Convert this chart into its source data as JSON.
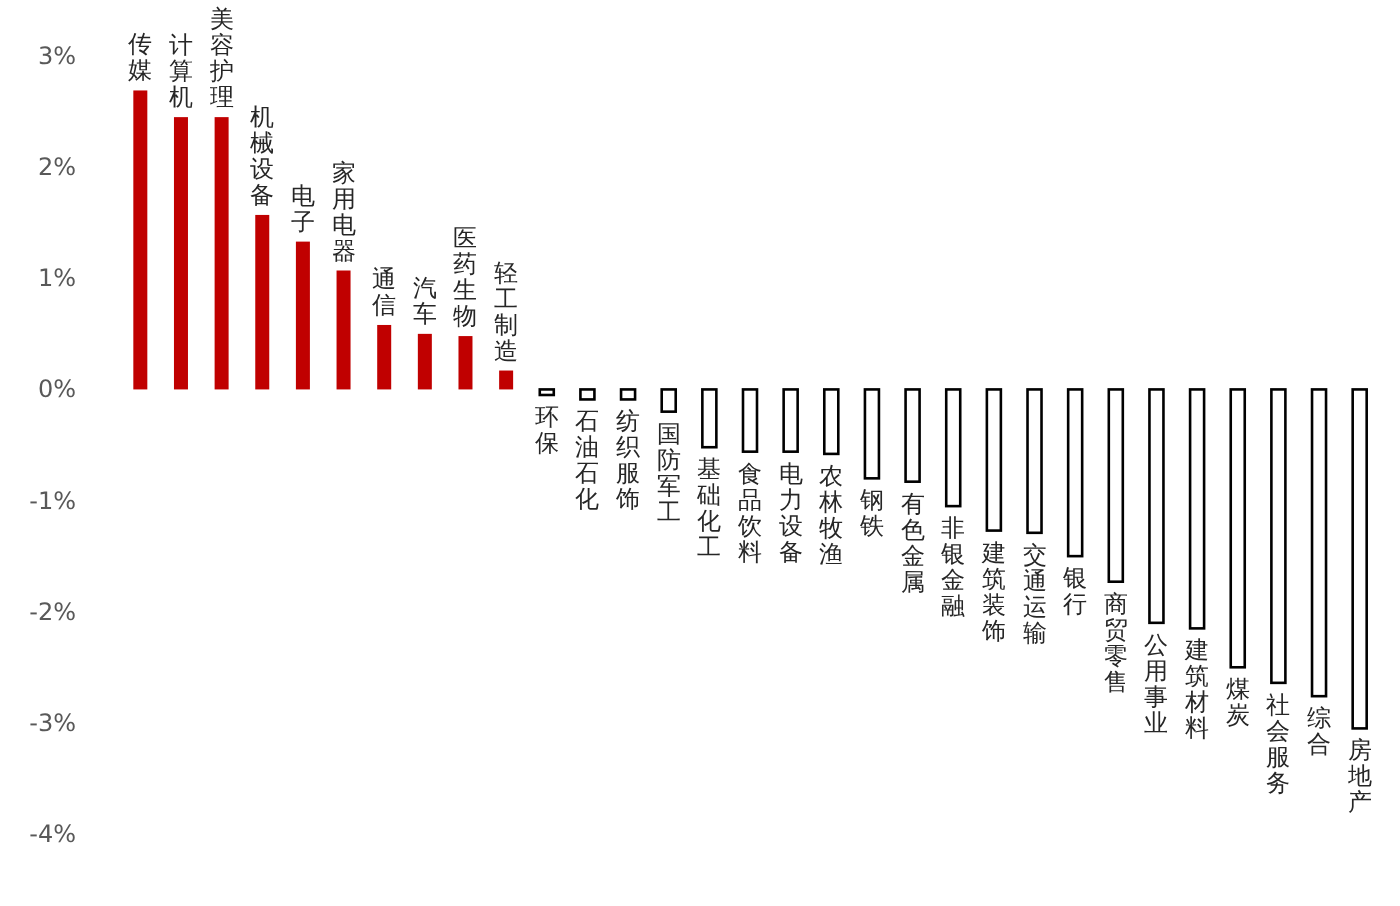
{
  "chart_data": {
    "type": "bar",
    "categories": [
      "传媒",
      "计算机",
      "美容护理",
      "机械设备",
      "电子",
      "家用电器",
      "通信",
      "汽车",
      "医药生物",
      "轻工制造",
      "环保",
      "石油石化",
      "纺织服饰",
      "国防军工",
      "基础化工",
      "食品饮料",
      "电力设备",
      "农林牧渔",
      "钢铁",
      "有色金属",
      "非银金融",
      "建筑装饰",
      "交通运输",
      "银行",
      "商贸零售",
      "公用事业",
      "建筑材料",
      "煤炭",
      "社会服务",
      "综合",
      "房地产"
    ],
    "values": [
      2.69,
      2.45,
      2.45,
      1.57,
      1.33,
      1.07,
      0.58,
      0.5,
      0.48,
      0.17,
      -0.05,
      -0.09,
      -0.09,
      -0.2,
      -0.52,
      -0.56,
      -0.56,
      -0.58,
      -0.8,
      -0.83,
      -1.05,
      -1.27,
      -1.29,
      -1.5,
      -1.73,
      -2.1,
      -2.15,
      -2.5,
      -2.64,
      -2.76,
      -3.05
    ],
    "colors": [
      "#c00000",
      "#c00000",
      "#c00000",
      "#c00000",
      "#c00000",
      "#c00000",
      "#c00000",
      "#c00000",
      "#c00000",
      "#c00000",
      "#ffffff",
      "#ffffff",
      "#ffffff",
      "#ffffff",
      "#ffffff",
      "#ffffff",
      "#ffffff",
      "#ffffff",
      "#ffffff",
      "#ffffff",
      "#ffffff",
      "#ffffff",
      "#ffffff",
      "#ffffff",
      "#ffffff",
      "#ffffff",
      "#ffffff",
      "#ffffff",
      "#ffffff",
      "#ffffff",
      "#ffffff"
    ],
    "ylim": [
      -4,
      3
    ],
    "yticks": [
      {
        "value": 3,
        "label": "3%"
      },
      {
        "value": 2,
        "label": "2%"
      },
      {
        "value": 1,
        "label": "1%"
      },
      {
        "value": 0,
        "label": "0%"
      },
      {
        "value": -1,
        "label": "-1%"
      },
      {
        "value": -2,
        "label": "-2%"
      },
      {
        "value": -3,
        "label": "-3%"
      },
      {
        "value": -4,
        "label": "-4%"
      }
    ],
    "grid": false
  }
}
